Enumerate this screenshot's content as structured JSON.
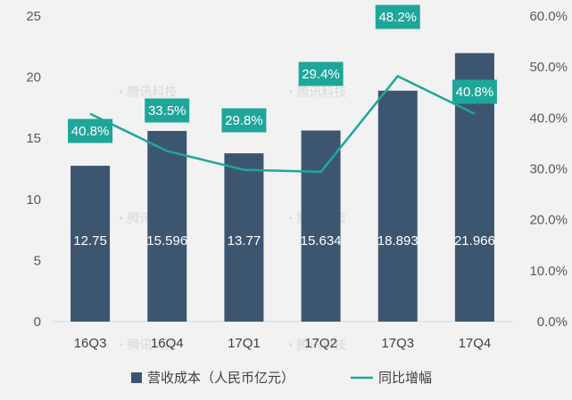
{
  "chart_data": {
    "type": "bar+line",
    "categories": [
      "16Q3",
      "16Q4",
      "17Q1",
      "17Q2",
      "17Q3",
      "17Q4"
    ],
    "series": [
      {
        "name": "营收成本（人民币亿元）",
        "type": "bar",
        "axis": "left",
        "values": [
          12.75,
          15.596,
          13.77,
          15.634,
          18.893,
          21.966
        ],
        "labels": [
          "12.75",
          "15.596",
          "13.77",
          "15.634",
          "18.893",
          "21.966"
        ]
      },
      {
        "name": "同比增幅",
        "type": "line",
        "axis": "right",
        "values": [
          40.8,
          33.5,
          29.8,
          29.4,
          48.2,
          40.8
        ],
        "labels": [
          "40.8%",
          "33.5%",
          "29.8%",
          "29.4%",
          "48.2%",
          "40.8%"
        ]
      }
    ],
    "y_left": {
      "min": 0,
      "max": 25,
      "ticks": [
        "0",
        "5",
        "10",
        "15",
        "20",
        "25"
      ]
    },
    "y_right": {
      "min": 0,
      "max": 60,
      "ticks": [
        "0.0%",
        "10.0%",
        "20.0%",
        "30.0%",
        "40.0%",
        "50.0%",
        "60.0%"
      ]
    },
    "grid": false,
    "legend_position": "bottom",
    "watermark": "腾讯科技",
    "colors": {
      "bar": "#3d5670",
      "line": "#1fa69b",
      "label_box": "#1fa69b",
      "background": "#f2f2f2"
    }
  }
}
